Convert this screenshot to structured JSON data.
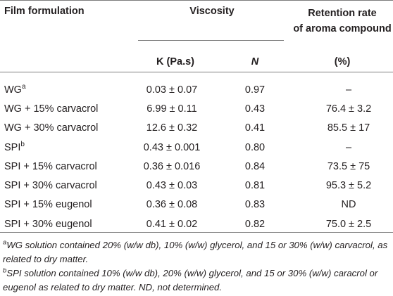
{
  "header": {
    "col1": "Film formulation",
    "viscosity": "Viscosity",
    "retention_line1": "Retention rate",
    "retention_line2": "of aroma compound",
    "k_label": "K (Pa.s)",
    "n_label": "N",
    "pct_label": "(%)"
  },
  "rows": [
    {
      "name": "WG",
      "sup": "a",
      "k": "0.03 ± 0.07",
      "n": "0.97",
      "ret": "–"
    },
    {
      "name": "WG + 15% carvacrol",
      "sup": "",
      "k": "6.99 ± 0.11",
      "n": "0.43",
      "ret": "76.4 ± 3.2"
    },
    {
      "name": "WG + 30% carvacrol",
      "sup": "",
      "k": "12.6 ± 0.32",
      "n": "0.41",
      "ret": "85.5 ± 17"
    },
    {
      "name": "SPI",
      "sup": "b",
      "k": "0.43 ± 0.001",
      "n": "0.80",
      "ret": "–"
    },
    {
      "name": "SPI + 15% carvacrol",
      "sup": "",
      "k": "0.36 ± 0.016",
      "n": "0.84",
      "ret": "73.5 ± 75"
    },
    {
      "name": "SPI + 30% carvacrol",
      "sup": "",
      "k": "0.43 ± 0.03",
      "n": "0.81",
      "ret": "95.3 ± 5.2"
    },
    {
      "name": "SPI + 15% eugenol",
      "sup": "",
      "k": "0.36 ± 0.08",
      "n": "0.83",
      "ret": "ND"
    },
    {
      "name": "SPI + 30% eugenol",
      "sup": "",
      "k": "0.41 ± 0.02",
      "n": "0.82",
      "ret": "75.0 ± 2.5"
    }
  ],
  "footnotes": [
    {
      "mark": "a",
      "text": "WG solution contained 20% (w/w db), 10% (w/w) glycerol, and 15 or 30% (w/w) carvacrol, as related to dry matter."
    },
    {
      "mark": "b",
      "text": "SPI solution contained 10% (w/w db), 20% (w/w) glycerol, and 15 or 30% (w/w) caracrol or eugenol as related to dry matter. ND, not determined."
    }
  ]
}
